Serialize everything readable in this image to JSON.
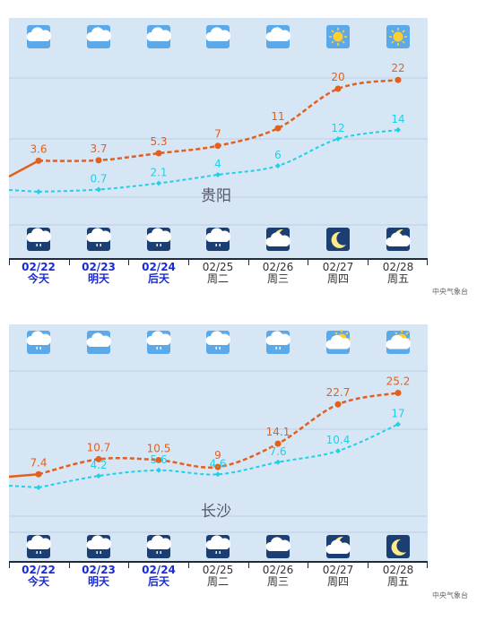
{
  "colors": {
    "high": "#e35f1c",
    "low": "#1fd0e8",
    "panel_bg": "#d7e6f5",
    "today": "#1a2bd6"
  },
  "panels": [
    {
      "city": "贵阳",
      "highs": [
        3.6,
        3.7,
        5.3,
        7,
        11,
        20,
        22
      ],
      "lows": [
        null,
        0.7,
        2.1,
        4,
        6,
        12,
        14
      ],
      "high_labels": [
        "3.6",
        "3.7",
        "5.3",
        "7",
        "11",
        "20",
        "22"
      ],
      "low_labels": [
        "",
        "0.7",
        "2.1",
        "4",
        "6",
        "12",
        "14"
      ],
      "day_icons": [
        "cloudy-icon",
        "cloudy-icon",
        "cloudy-icon",
        "cloudy-icon",
        "cloudy-icon",
        "sunny-icon",
        "sunny-icon"
      ],
      "night_icons": [
        "light-rain-icon",
        "light-rain-icon",
        "light-rain-icon",
        "light-rain-icon",
        "partly-cloudy-night-icon",
        "clear-night-icon",
        "partly-cloudy-night-icon"
      ],
      "days": [
        {
          "date": "02/22",
          "label": "今天"
        },
        {
          "date": "02/23",
          "label": "明天"
        },
        {
          "date": "02/24",
          "label": "后天"
        },
        {
          "date": "02/25",
          "label": "周二"
        },
        {
          "date": "02/26",
          "label": "周三"
        },
        {
          "date": "02/27",
          "label": "周四"
        },
        {
          "date": "02/28",
          "label": "周五"
        }
      ],
      "source": "中央气象台"
    },
    {
      "city": "长沙",
      "highs": [
        7.4,
        10.7,
        10.5,
        9,
        14.1,
        22.7,
        25.2
      ],
      "lows": [
        null,
        4.2,
        5.6,
        4.6,
        7.6,
        10.4,
        17
      ],
      "high_labels": [
        "7.4",
        "10.7",
        "10.5",
        "9",
        "14.1",
        "22.7",
        "25.2"
      ],
      "low_labels": [
        "",
        "4.2",
        "5.6",
        "4.6",
        "7.6",
        "10.4",
        "17"
      ],
      "day_icons": [
        "light-rain-icon",
        "cloudy-icon",
        "light-rain-icon",
        "light-rain-icon",
        "light-rain-icon",
        "partly-cloudy-icon",
        "partly-cloudy-icon"
      ],
      "night_icons": [
        "light-rain-icon",
        "light-rain-icon",
        "light-rain-icon",
        "light-rain-icon",
        "cloudy-icon",
        "partly-cloudy-night-icon",
        "clear-night-icon"
      ],
      "days": [
        {
          "date": "02/22",
          "label": "今天"
        },
        {
          "date": "02/23",
          "label": "明天"
        },
        {
          "date": "02/24",
          "label": "后天"
        },
        {
          "date": "02/25",
          "label": "周二"
        },
        {
          "date": "02/26",
          "label": "周三"
        },
        {
          "date": "02/27",
          "label": "周四"
        },
        {
          "date": "02/28",
          "label": "周五"
        }
      ],
      "source": "中央气象台"
    }
  ]
}
